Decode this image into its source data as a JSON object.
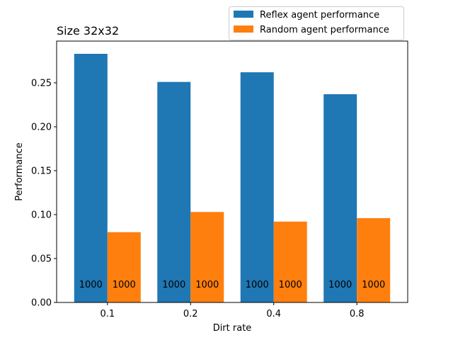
{
  "chart_data": {
    "type": "bar",
    "title": "Size 32x32",
    "xlabel": "Dirt rate",
    "ylabel": "Performance",
    "categories": [
      "0.1",
      "0.2",
      "0.4",
      "0.8"
    ],
    "ylim": [
      0,
      0.2975
    ],
    "yticks": [
      "0.00",
      "0.05",
      "0.10",
      "0.15",
      "0.20",
      "0.25"
    ],
    "legend_position": "above top-right",
    "grid": false,
    "series": [
      {
        "name": "Reflex agent performance",
        "color": "#1f77b4",
        "values": [
          0.283,
          0.251,
          0.262,
          0.237
        ],
        "bar_labels": [
          "1000",
          "1000",
          "1000",
          "1000"
        ]
      },
      {
        "name": "Random agent performance",
        "color": "#ff7f0e",
        "values": [
          0.08,
          0.103,
          0.092,
          0.096
        ],
        "bar_labels": [
          "1000",
          "1000",
          "1000",
          "1000"
        ]
      }
    ]
  }
}
